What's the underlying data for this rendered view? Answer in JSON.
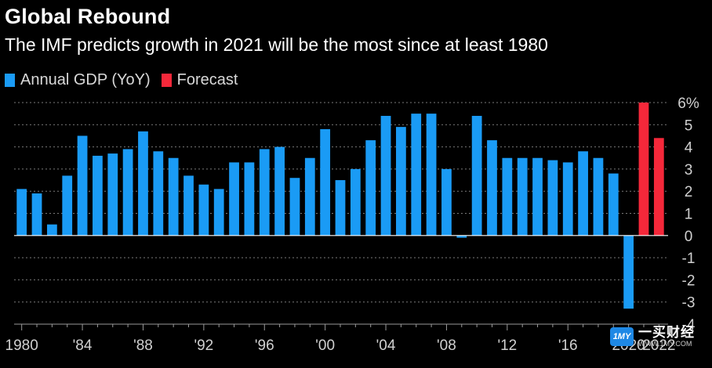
{
  "header": {
    "title": "Global Rebound",
    "subtitle": "The IMF predicts growth in 2021 will be the most since at least 1980"
  },
  "legend": [
    {
      "label": "Annual GDP (YoY)",
      "color": "#1a9bf5"
    },
    {
      "label": "Forecast",
      "color": "#f5283a"
    }
  ],
  "watermark": {
    "logo": "1MY",
    "text": "一买财经",
    "url": "WWW.1MY.COM"
  },
  "chart_data": {
    "type": "bar",
    "title": "Global Rebound",
    "subtitle": "The IMF predicts growth in 2021 will be the most since at least 1980",
    "ylabel": "",
    "xlabel": "",
    "ylim": [
      -4,
      6
    ],
    "y_ticks": [
      "6%",
      "5",
      "4",
      "3",
      "2",
      "1",
      "0",
      "-1",
      "-2",
      "-3",
      "-4"
    ],
    "y_tick_values": [
      6,
      5,
      4,
      3,
      2,
      1,
      0,
      -1,
      -2,
      -3,
      -4
    ],
    "x_tick_labels": [
      {
        "year": 1980,
        "label": "1980"
      },
      {
        "year": 1984,
        "label": "'84"
      },
      {
        "year": 1988,
        "label": "'88"
      },
      {
        "year": 1992,
        "label": "'92"
      },
      {
        "year": 1996,
        "label": "'96"
      },
      {
        "year": 2000,
        "label": "'00"
      },
      {
        "year": 2004,
        "label": "'04"
      },
      {
        "year": 2008,
        "label": "'08"
      },
      {
        "year": 2012,
        "label": "'12"
      },
      {
        "year": 2016,
        "label": "'16"
      },
      {
        "year": 2020,
        "label": "2020"
      },
      {
        "year": 2022,
        "label": "2022"
      }
    ],
    "series": [
      {
        "name": "Annual GDP (YoY)",
        "color": "#1a9bf5",
        "years": [
          1980,
          1981,
          1982,
          1983,
          1984,
          1985,
          1986,
          1987,
          1988,
          1989,
          1990,
          1991,
          1992,
          1993,
          1994,
          1995,
          1996,
          1997,
          1998,
          1999,
          2000,
          2001,
          2002,
          2003,
          2004,
          2005,
          2006,
          2007,
          2008,
          2009,
          2010,
          2011,
          2012,
          2013,
          2014,
          2015,
          2016,
          2017,
          2018,
          2019,
          2020
        ],
        "values": [
          2.1,
          1.9,
          0.5,
          2.7,
          4.5,
          3.6,
          3.7,
          3.9,
          4.7,
          3.8,
          3.5,
          2.7,
          2.3,
          2.1,
          3.3,
          3.3,
          3.9,
          4.0,
          2.6,
          3.5,
          4.8,
          2.5,
          3.0,
          4.3,
          5.4,
          4.9,
          5.5,
          5.5,
          3.0,
          -0.1,
          5.4,
          4.3,
          3.5,
          3.5,
          3.5,
          3.4,
          3.3,
          3.8,
          3.5,
          2.8,
          -3.3
        ]
      },
      {
        "name": "Forecast",
        "color": "#f5283a",
        "years": [
          2021,
          2022
        ],
        "values": [
          6.0,
          4.4
        ]
      }
    ],
    "grid": true,
    "legend_position": "top-left"
  }
}
